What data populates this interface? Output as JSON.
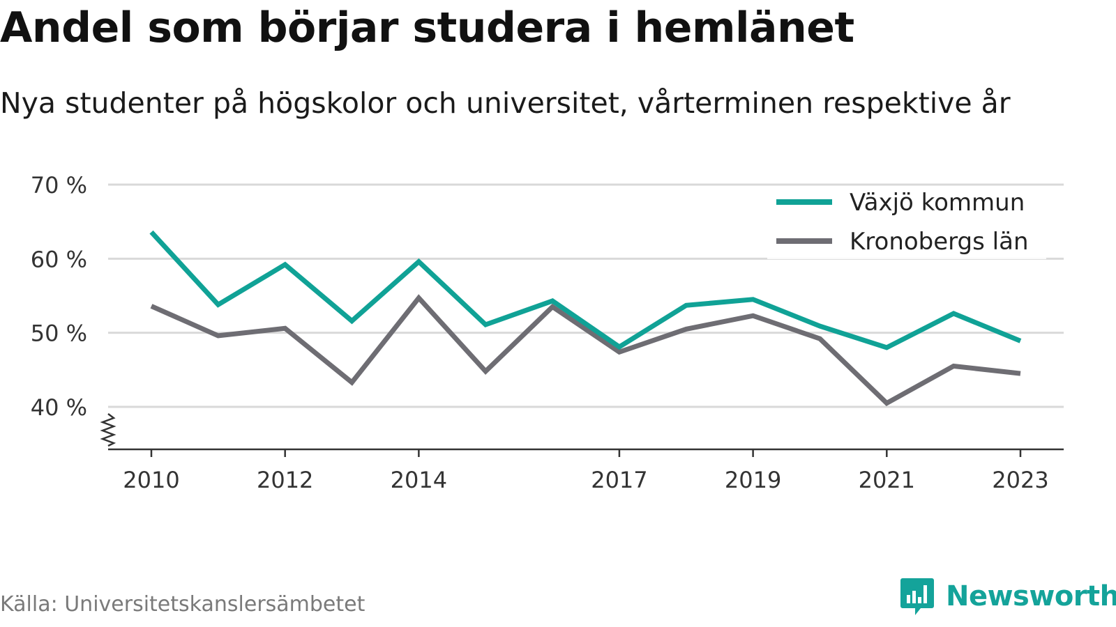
{
  "header": {
    "title": "Andel som börjar studera i hemlänet",
    "subtitle": "Nya studenter på högskolor och universitet, vårterminen respektive år"
  },
  "footer": {
    "source": "Källa: Universitetskanslersämbetet",
    "brand": "Newsworthy",
    "brand_icon": "bar-chart-speech-bubble-icon"
  },
  "colors": {
    "vaxjo": "#10a296",
    "kronoberg": "#6e6d73",
    "grid": "#d9d9d9",
    "axis": "#333333",
    "brand": "#14a39a"
  },
  "chart_data": {
    "type": "line",
    "title": "Andel som börjar studera i hemlänet",
    "subtitle": "Nya studenter på högskolor och universitet, vårterminen respektive år",
    "x": [
      2010,
      2011,
      2012,
      2013,
      2014,
      2015,
      2016,
      2017,
      2018,
      2019,
      2020,
      2021,
      2022,
      2023
    ],
    "x_tick_labels": [
      "2010",
      "2012",
      "2014",
      "2017",
      "2019",
      "2021",
      "2023"
    ],
    "y_ticks": [
      40,
      50,
      60,
      70
    ],
    "y_tick_labels": [
      "40 %",
      "50 %",
      "60 %",
      "70 %"
    ],
    "ylim": [
      35,
      70
    ],
    "y_axis_break": true,
    "grid": "horizontal",
    "legend_position": "top-right",
    "series": [
      {
        "name": "Växjö kommun",
        "color": "#10a296",
        "values": [
          63.6,
          53.8,
          59.2,
          51.6,
          59.6,
          51.1,
          54.3,
          48.1,
          53.7,
          54.5,
          50.9,
          48.0,
          52.6,
          48.9
        ]
      },
      {
        "name": "Kronobergs län",
        "color": "#6e6d73",
        "values": [
          53.6,
          49.6,
          50.6,
          43.3,
          54.7,
          44.8,
          53.5,
          47.4,
          50.5,
          52.3,
          49.2,
          40.5,
          45.5,
          44.5
        ]
      }
    ]
  }
}
